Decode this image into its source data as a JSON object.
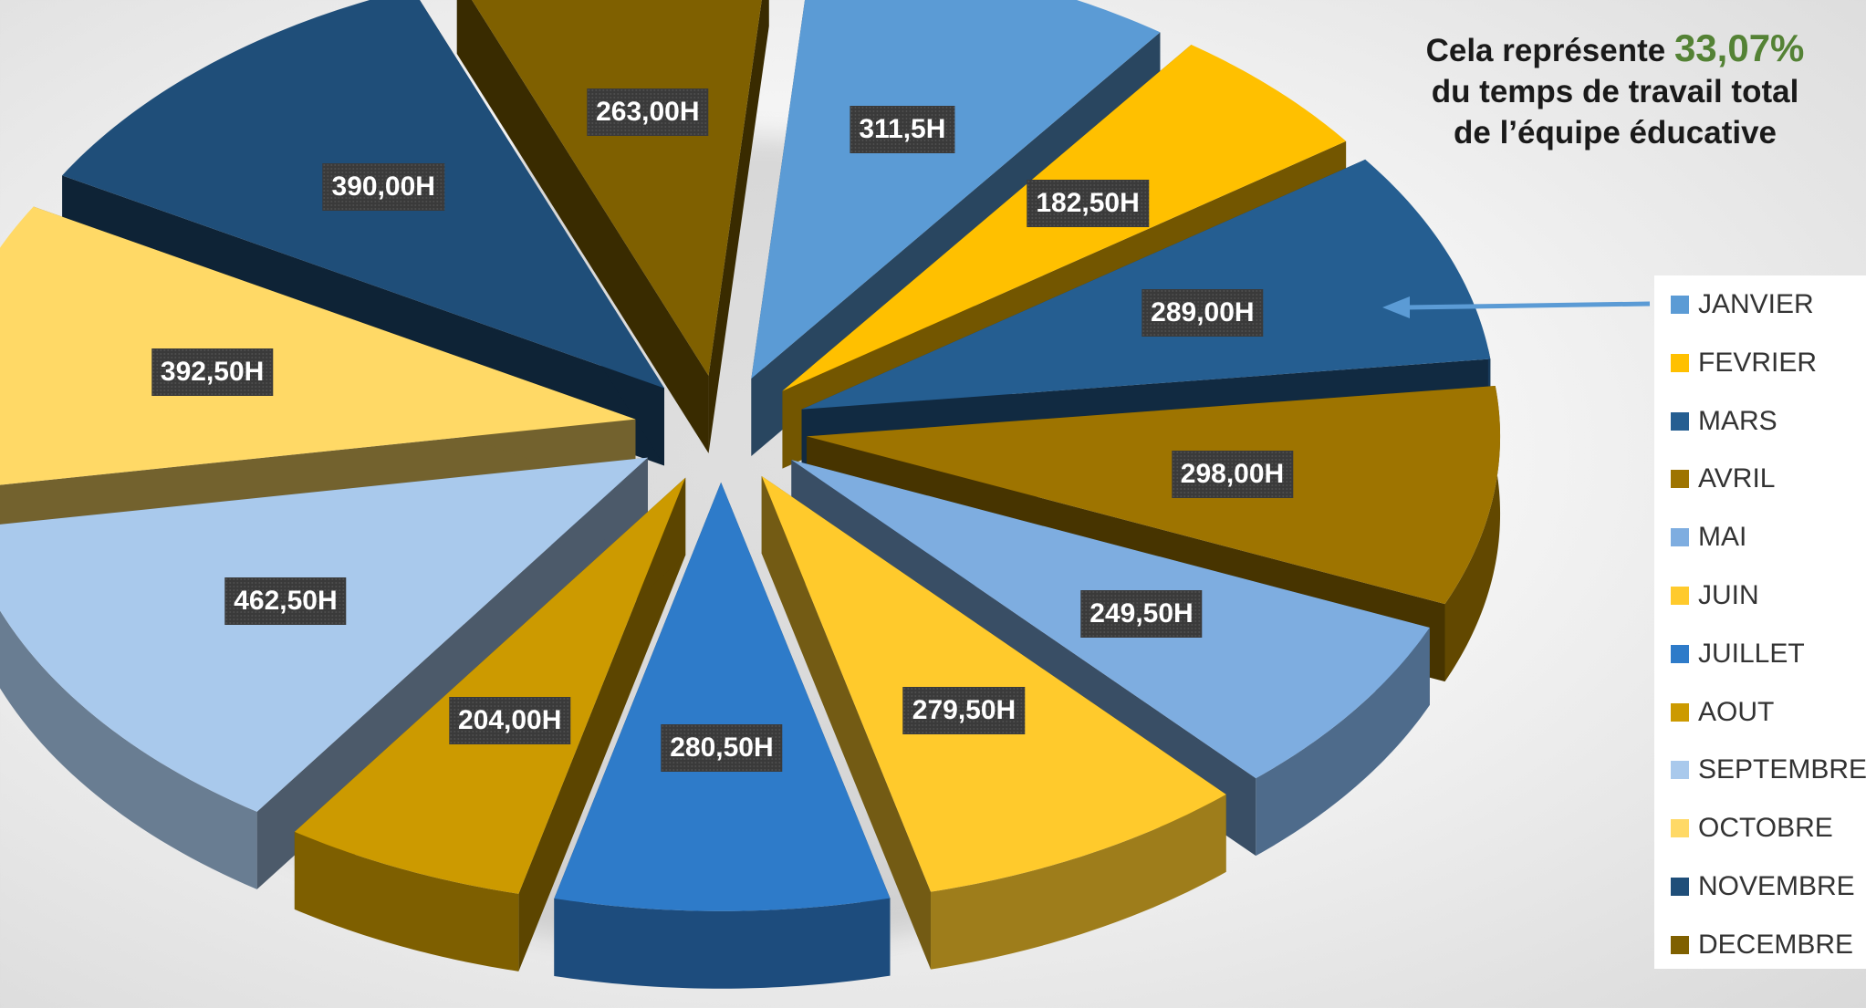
{
  "chart_data": {
    "type": "pie",
    "title": "",
    "annotation": {
      "prefix": "Cela représente",
      "percent": "33,07%",
      "line2": "du temps de travail total",
      "line3": "de l’équipe éducative"
    },
    "legend_position": "right",
    "slices": [
      {
        "label": "JANVIER",
        "value": 311.5,
        "display": "311,5H",
        "color": "#5B9BD5"
      },
      {
        "label": "FEVRIER",
        "value": 182.5,
        "display": "182,50H",
        "color": "#FFC000"
      },
      {
        "label": "MARS",
        "value": 289.0,
        "display": "289,00H",
        "color": "#255E91"
      },
      {
        "label": "AVRIL",
        "value": 298.0,
        "display": "298,00H",
        "color": "#9E7400"
      },
      {
        "label": "MAI",
        "value": 249.5,
        "display": "249,50H",
        "color": "#7EADE0"
      },
      {
        "label": "JUIN",
        "value": 279.5,
        "display": "279,50H",
        "color": "#FFCA2C"
      },
      {
        "label": "JUILLET",
        "value": 280.5,
        "display": "280,50H",
        "color": "#2E7BC9"
      },
      {
        "label": "AOUT",
        "value": 204.0,
        "display": "204,00H",
        "color": "#CC9A00"
      },
      {
        "label": "SEPTEMBRE",
        "value": 462.5,
        "display": "462,50H",
        "color": "#A9C9EC"
      },
      {
        "label": "OCTOBRE",
        "value": 392.5,
        "display": "392,50H",
        "color": "#FFD966"
      },
      {
        "label": "NOVEMBRE",
        "value": 390.0,
        "display": "390,00H",
        "color": "#1F4E79"
      },
      {
        "label": "DECEMBRE",
        "value": 263.0,
        "display": "263,00H",
        "color": "#7F6000"
      }
    ]
  }
}
